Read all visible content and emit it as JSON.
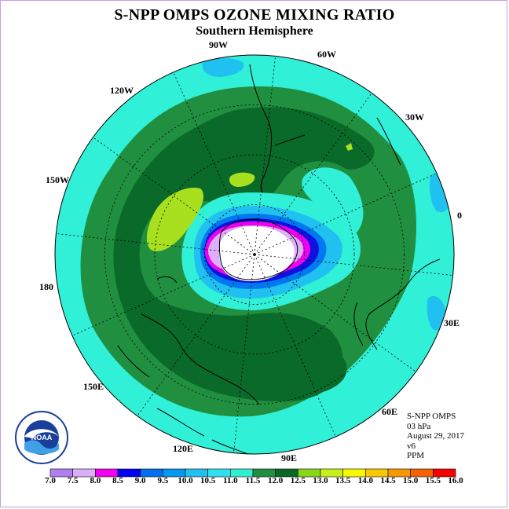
{
  "title": "S-NPP OMPS OZONE MIXING RATIO",
  "subtitle": "Southern Hemisphere",
  "longitude_labels": [
    "90W",
    "60W",
    "30W",
    "0",
    "30E",
    "60E",
    "90E",
    "120E",
    "150E",
    "180",
    "150W",
    "120W"
  ],
  "info_lines": [
    "S-NPP OMPS",
    "03 hPa",
    "August 29, 2017",
    "v6",
    "PPM"
  ],
  "logo_text": "NOAA",
  "colorbar": {
    "unit": "PPM",
    "ticks": [
      "7.0",
      "7.5",
      "8.0",
      "8.5",
      "9.0",
      "9.5",
      "10.0",
      "10.5",
      "11.0",
      "11.5",
      "12.0",
      "12.5",
      "13.0",
      "13.5",
      "14.0",
      "14.5",
      "15.0",
      "15.5",
      "16.0"
    ],
    "colors": [
      "#b080f0",
      "#dcb0f8",
      "#f000f0",
      "#0000f0",
      "#0070f0",
      "#0098f0",
      "#20c0f0",
      "#30e0f0",
      "#30f0d0",
      "#209040",
      "#086828",
      "#88d818",
      "#c8f018",
      "#f8f800",
      "#f8c800",
      "#f89800",
      "#f86000",
      "#f80000",
      "#906040"
    ]
  },
  "map": {
    "pole_fill": "#ffffff",
    "ocean_fill": "#30f0d8",
    "band_mid": "#209040",
    "band_dark": "#0a6a2a",
    "light_green": "#a8e020"
  }
}
